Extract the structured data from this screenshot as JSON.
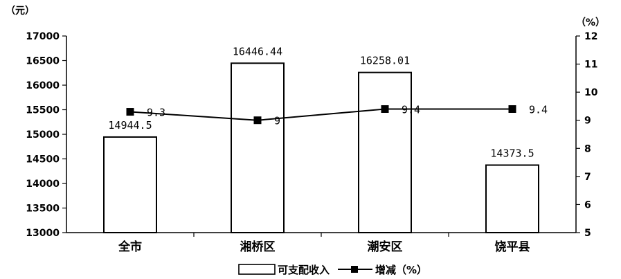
{
  "chart_data": {
    "type": "bar",
    "categories": [
      "全市",
      "湘桥区",
      "潮安区",
      "饶平县"
    ],
    "series": [
      {
        "name": "可支配收入",
        "type": "bar",
        "axis": "left",
        "values": [
          14944.5,
          16446.44,
          16258.01,
          14373.5
        ],
        "labels": [
          "14944.5",
          "16446.44",
          "16258.01",
          "14373.5"
        ]
      },
      {
        "name": "增减（%）",
        "type": "line",
        "axis": "right",
        "values": [
          9.3,
          9,
          9.4,
          9.4
        ],
        "labels": [
          "9.3",
          "9",
          "9.4",
          "9.4"
        ]
      }
    ],
    "y_left": {
      "unit": "（元）",
      "min": 13000,
      "max": 17000,
      "step": 500
    },
    "y_right": {
      "unit": "（%）",
      "min": 5,
      "max": 12,
      "step": 1
    },
    "legend_position": "bottom",
    "grid": false,
    "colors": {
      "axis": "#000000",
      "bar_fill": "#ffffff",
      "bar_stroke": "#000000",
      "line": "#000000"
    }
  }
}
